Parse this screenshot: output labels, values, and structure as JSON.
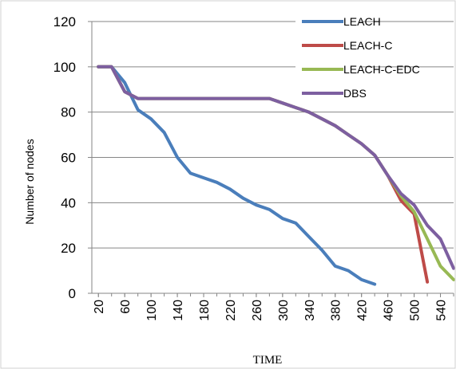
{
  "chart_data": {
    "type": "line",
    "title": "",
    "xlabel": "TIME",
    "ylabel": "Number of nodes",
    "xlim": [
      10,
      560
    ],
    "ylim": [
      0,
      120
    ],
    "y_ticks": [
      "0",
      "20",
      "40",
      "60",
      "80",
      "100",
      "120"
    ],
    "x_ticks": [
      "20",
      "60",
      "100",
      "140",
      "180",
      "220",
      "260",
      "300",
      "340",
      "380",
      "420",
      "460",
      "500",
      "540"
    ],
    "x_tick_values": [
      20,
      60,
      100,
      140,
      180,
      220,
      260,
      300,
      340,
      380,
      420,
      460,
      500,
      540
    ],
    "grid": "horizontal",
    "legend_position": "top-right",
    "series": [
      {
        "name": "LEACH",
        "color": "#4a7ebb",
        "points": [
          [
            20,
            100
          ],
          [
            40,
            100
          ],
          [
            60,
            93
          ],
          [
            80,
            81
          ],
          [
            100,
            77
          ],
          [
            120,
            71
          ],
          [
            140,
            60
          ],
          [
            160,
            53
          ],
          [
            180,
            51
          ],
          [
            200,
            49
          ],
          [
            220,
            46
          ],
          [
            240,
            42
          ],
          [
            260,
            39
          ],
          [
            280,
            37
          ],
          [
            300,
            33
          ],
          [
            320,
            31
          ],
          [
            340,
            25
          ],
          [
            360,
            19
          ],
          [
            380,
            12
          ],
          [
            400,
            10
          ],
          [
            420,
            6
          ],
          [
            440,
            4
          ]
        ]
      },
      {
        "name": "LEACH-C",
        "color": "#be4b48",
        "points": [
          [
            20,
            100
          ],
          [
            40,
            100
          ],
          [
            60,
            89
          ],
          [
            80,
            86
          ],
          [
            100,
            86
          ],
          [
            140,
            86
          ],
          [
            180,
            86
          ],
          [
            220,
            86
          ],
          [
            260,
            86
          ],
          [
            280,
            86
          ],
          [
            300,
            84
          ],
          [
            320,
            82
          ],
          [
            340,
            80
          ],
          [
            360,
            77
          ],
          [
            380,
            74
          ],
          [
            400,
            70
          ],
          [
            420,
            66
          ],
          [
            440,
            61
          ],
          [
            460,
            52
          ],
          [
            480,
            41
          ],
          [
            500,
            35
          ],
          [
            520,
            5
          ]
        ]
      },
      {
        "name": "LEACH-C-EDC",
        "color": "#98b954",
        "points": [
          [
            20,
            100
          ],
          [
            40,
            100
          ],
          [
            60,
            89
          ],
          [
            80,
            86
          ],
          [
            100,
            86
          ],
          [
            140,
            86
          ],
          [
            180,
            86
          ],
          [
            220,
            86
          ],
          [
            260,
            86
          ],
          [
            280,
            86
          ],
          [
            300,
            84
          ],
          [
            320,
            82
          ],
          [
            340,
            80
          ],
          [
            360,
            77
          ],
          [
            380,
            74
          ],
          [
            400,
            70
          ],
          [
            420,
            66
          ],
          [
            440,
            61
          ],
          [
            460,
            52
          ],
          [
            480,
            43
          ],
          [
            500,
            36
          ],
          [
            520,
            24
          ],
          [
            540,
            12
          ],
          [
            560,
            6
          ]
        ]
      },
      {
        "name": "DBS",
        "color": "#7d5fa0",
        "points": [
          [
            20,
            100
          ],
          [
            40,
            100
          ],
          [
            60,
            89
          ],
          [
            80,
            86
          ],
          [
            100,
            86
          ],
          [
            140,
            86
          ],
          [
            180,
            86
          ],
          [
            220,
            86
          ],
          [
            260,
            86
          ],
          [
            280,
            86
          ],
          [
            300,
            84
          ],
          [
            320,
            82
          ],
          [
            340,
            80
          ],
          [
            360,
            77
          ],
          [
            380,
            74
          ],
          [
            400,
            70
          ],
          [
            420,
            66
          ],
          [
            440,
            61
          ],
          [
            460,
            52
          ],
          [
            480,
            44
          ],
          [
            500,
            39
          ],
          [
            520,
            30
          ],
          [
            540,
            24
          ],
          [
            560,
            11
          ]
        ]
      }
    ]
  }
}
